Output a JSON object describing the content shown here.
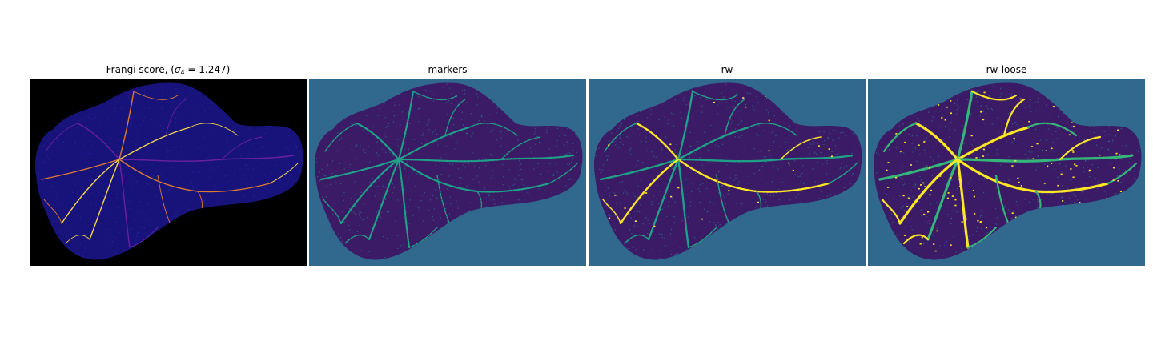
{
  "figure": {
    "panels": [
      {
        "title_prefix": "Frangi score, (",
        "title_sigma": "σ",
        "title_sub": "4",
        "title_suffix": " = 1.247)",
        "colormap": "plasma-like",
        "background_color": "#000000",
        "tissue_color": "#17137a",
        "vessel_colors": [
          "#6a1fa0",
          "#e0782f",
          "#f5d44a"
        ]
      },
      {
        "title": "markers",
        "colormap": "viridis",
        "background_color": "#31688e",
        "tissue_color": "#3b1a66",
        "vessel_colors": [
          "#1fa187",
          "#26828e"
        ]
      },
      {
        "title": "rw",
        "colormap": "viridis",
        "background_color": "#31688e",
        "tissue_color": "#3b1a66",
        "vessel_colors": [
          "#1fa187",
          "#fde725"
        ]
      },
      {
        "title": "rw-loose",
        "colormap": "viridis",
        "background_color": "#31688e",
        "tissue_color": "#3b1a66",
        "vessel_colors": [
          "#1fa187",
          "#fde725",
          "#35b779"
        ]
      }
    ]
  }
}
